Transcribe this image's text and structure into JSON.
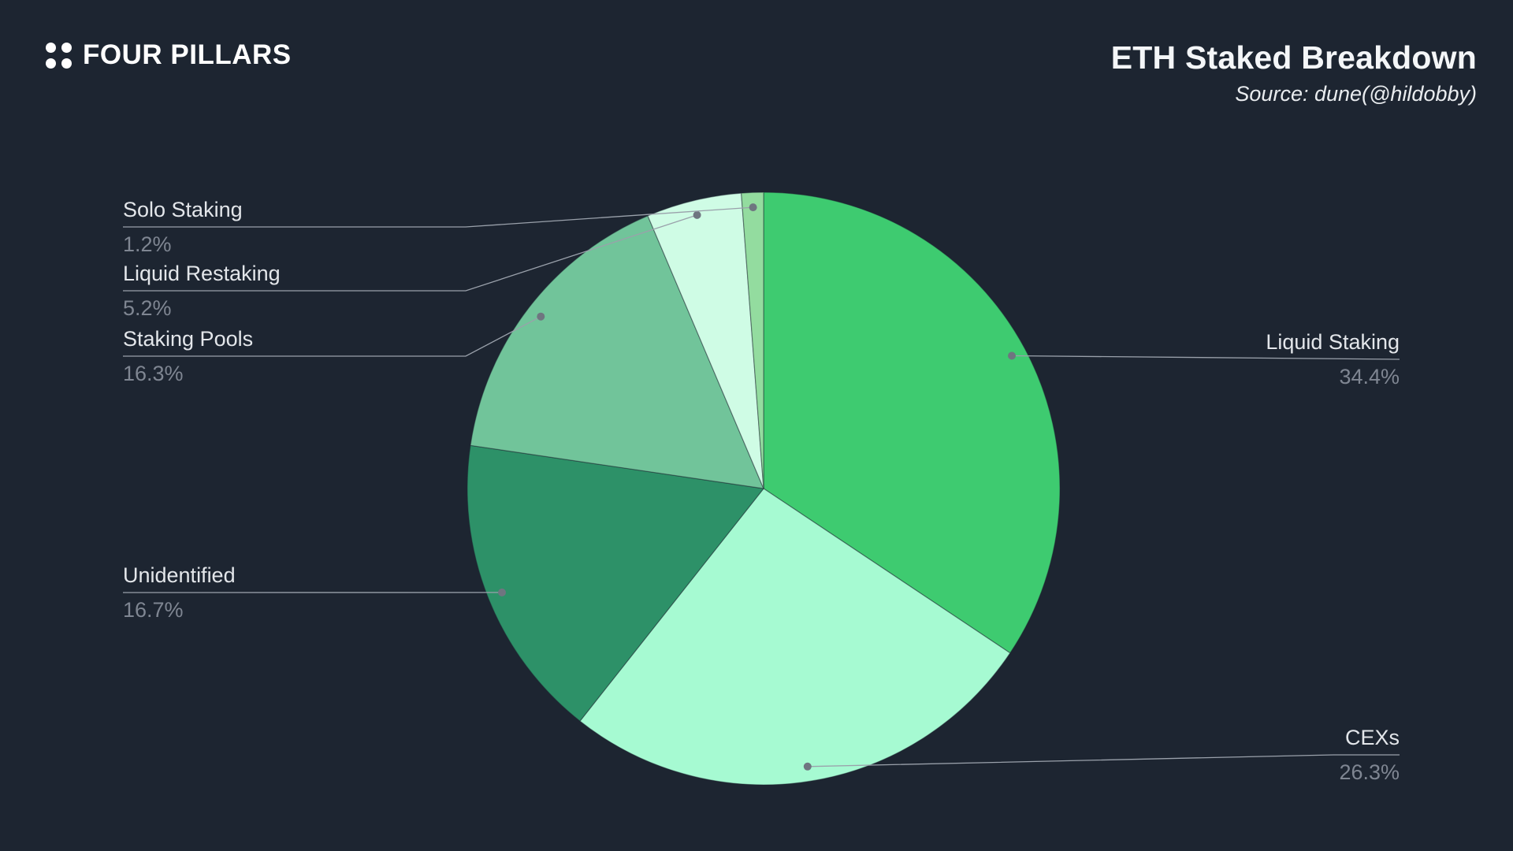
{
  "header": {
    "brand": "FOUR PILLARS",
    "title": "ETH Staked Breakdown",
    "source": "Source: dune(@hildobby)"
  },
  "colors": {
    "background": "#1d2531",
    "label_text": "#e3e6ea",
    "percent_text": "#7f8692",
    "leader_line": "#9aa1ab",
    "leader_dot": "#6f7580"
  },
  "chart_data": {
    "type": "pie",
    "title": "ETH Staked Breakdown",
    "source": "Source: dune(@hildobby)",
    "start_angle_deg": 0,
    "direction": "clockwise",
    "legend_position": "callout-labels",
    "slices": [
      {
        "label": "Liquid Staking",
        "value": 34.4,
        "pct_label": "34.4%",
        "color": "#3ecb70"
      },
      {
        "label": "CEXs",
        "value": 26.3,
        "pct_label": "26.3%",
        "color": "#a6fad2"
      },
      {
        "label": "Unidentified",
        "value": 16.7,
        "pct_label": "16.7%",
        "color": "#2d9168"
      },
      {
        "label": "Staking Pools",
        "value": 16.3,
        "pct_label": "16.3%",
        "color": "#71c49a"
      },
      {
        "label": "Liquid Restaking",
        "value": 5.2,
        "pct_label": "5.2%",
        "color": "#cffce5"
      },
      {
        "label": "Solo Staking",
        "value": 1.2,
        "pct_label": "1.2%",
        "color": "#93dc9f"
      }
    ]
  }
}
